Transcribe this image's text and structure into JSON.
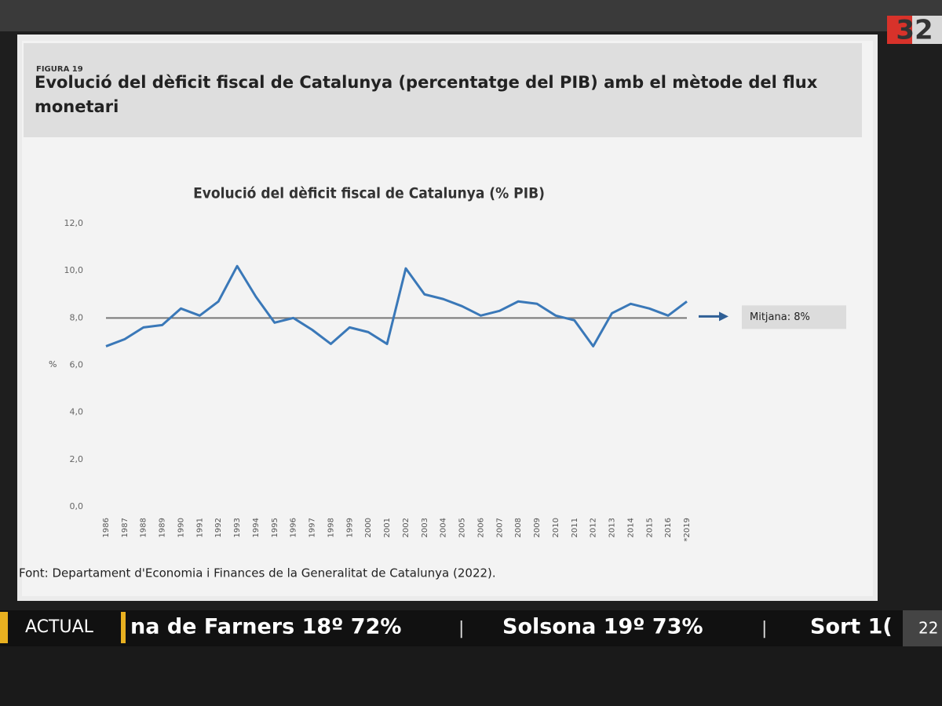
{
  "figure_label": "FIGURA 19",
  "header_title": "Evolució del dèficit fiscal de Catalunya (percentatge del PIB) amb el mètode del flux monetari",
  "source": "Font: Departament d'Economia i Finances de la Generalitat de Catalunya (2022).",
  "channel_logo": "32",
  "ticker": {
    "label": "ACTUAL",
    "items": [
      "na de Farners 18º 72%",
      "Solsona 19º 73%",
      "Sort 1("
    ],
    "separator": "|",
    "clock": "22"
  },
  "chart_data": {
    "type": "line",
    "title": "Evolució del dèficit fiscal de Catalunya (% PIB)",
    "ylabel": "%",
    "categories": [
      "1986",
      "1987",
      "1988",
      "1989",
      "1990",
      "1991",
      "1992",
      "1993",
      "1994",
      "1995",
      "1996",
      "1997",
      "1998",
      "1999",
      "2000",
      "2001",
      "2002",
      "2003",
      "2004",
      "2005",
      "2006",
      "2007",
      "2008",
      "2009",
      "2010",
      "2011",
      "2012",
      "2013",
      "2014",
      "2015",
      "2016",
      "*2019"
    ],
    "values": [
      6.8,
      7.1,
      7.6,
      7.7,
      8.4,
      8.1,
      8.7,
      10.2,
      8.9,
      7.8,
      8.0,
      7.5,
      6.9,
      7.6,
      7.4,
      6.9,
      10.1,
      9.0,
      8.8,
      8.5,
      8.1,
      8.3,
      8.7,
      8.6,
      8.1,
      7.9,
      6.8,
      8.2,
      8.6,
      8.4,
      8.1,
      8.7
    ],
    "color": "#3a78b8",
    "mean": 8,
    "mean_label": "Mitjana: 8%",
    "mean_color": "#777777",
    "ylim": [
      0,
      12
    ],
    "yticks": [
      {
        "value": 0,
        "label": "0,0"
      },
      {
        "value": 2,
        "label": "2,0"
      },
      {
        "value": 4,
        "label": "4,0"
      },
      {
        "value": 6,
        "label": "6,0"
      },
      {
        "value": 8,
        "label": "8,0"
      },
      {
        "value": 10,
        "label": "10,0"
      },
      {
        "value": 12,
        "label": "12,0"
      }
    ],
    "grid": false
  }
}
